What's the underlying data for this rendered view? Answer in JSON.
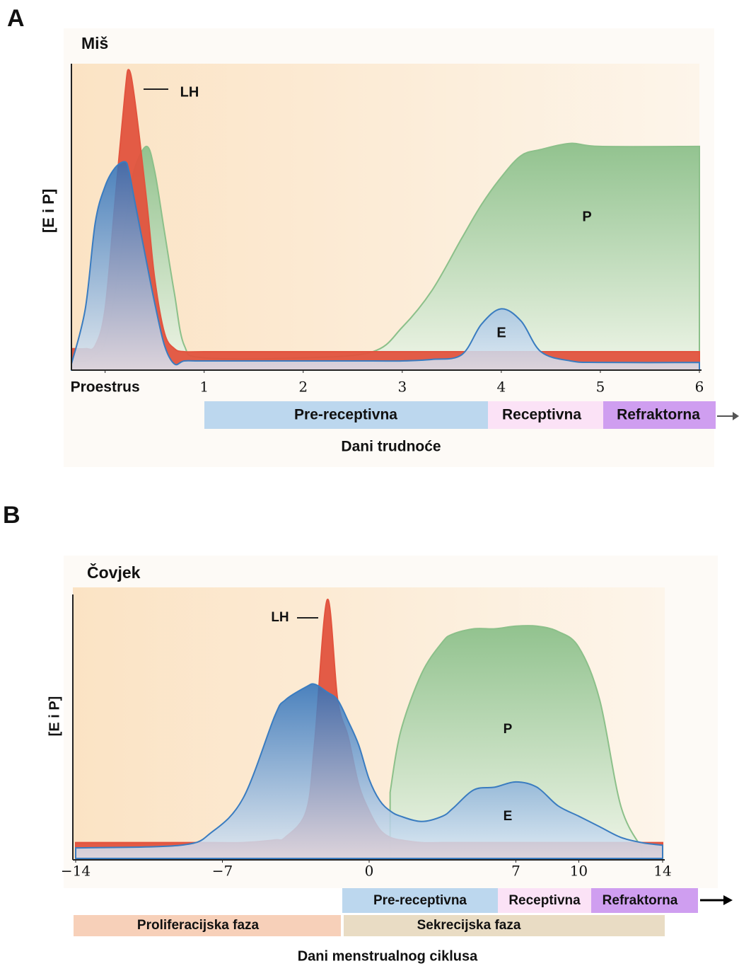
{
  "chart_data": [
    {
      "type": "area",
      "panel": "A",
      "title": "Miš",
      "ylabel": "[E i P]",
      "xlabel": "Dani trudnoće",
      "x": [
        -0.34,
        -0.2,
        -0.1,
        0,
        0.1,
        0.2,
        0.24,
        0.3,
        0.42,
        0.5,
        0.6,
        0.7,
        0.8,
        1,
        2,
        2.7,
        3,
        3.3,
        3.6,
        3.8,
        4,
        4.2,
        4.4,
        4.7,
        5,
        6
      ],
      "xlim": [
        -0.34,
        6
      ],
      "ylim": [
        0,
        100
      ],
      "xticks": [
        {
          "value": 0,
          "label": "Proestrus"
        },
        1,
        2,
        3,
        4,
        5,
        6
      ],
      "series": [
        {
          "name": "P",
          "color": "#8cc08a",
          "values": [
            3,
            3,
            5,
            9,
            25,
            47,
            55,
            66,
            73,
            65,
            45,
            25,
            8,
            4,
            4,
            6,
            14,
            26,
            43,
            54,
            63,
            70,
            72,
            74,
            73,
            73
          ]
        },
        {
          "name": "LH",
          "color": "#e2533e",
          "values": [
            7,
            7,
            8,
            20,
            55,
            90,
            98,
            88,
            55,
            30,
            12,
            7,
            6,
            6,
            6,
            6,
            6,
            6,
            6,
            6,
            6,
            6,
            6,
            6,
            6,
            6
          ]
        },
        {
          "name": "E",
          "color": "#3a7cc0",
          "values": [
            2,
            20,
            48,
            60,
            66,
            68,
            65,
            55,
            35,
            22,
            8,
            2,
            3,
            3,
            3,
            3,
            3,
            3.5,
            5,
            15,
            20,
            16,
            6,
            3,
            2.5,
            2.5
          ]
        }
      ],
      "phases": [
        "Pre-receptivna",
        "Receptivna",
        "Refraktorna"
      ]
    },
    {
      "type": "area",
      "panel": "B",
      "title": "Čovjek",
      "ylabel": "[E i P]",
      "xlabel": "Dani menstrualnog ciklusa",
      "x": [
        -14,
        -9,
        -7.5,
        -6,
        -4.5,
        -4,
        -3,
        -2.6,
        -2,
        -1.5,
        -1,
        -0.5,
        0,
        0.5,
        1,
        1.5,
        2.5,
        3.5,
        4,
        5,
        6,
        7,
        8,
        9,
        10,
        11,
        12,
        13,
        14
      ],
      "xlim": [
        -14,
        14
      ],
      "ylim": [
        0,
        100
      ],
      "xticks": [
        {
          "value": -14,
          "label": "−14"
        },
        {
          "value": -7,
          "label": "−7"
        },
        0,
        7,
        10,
        14
      ],
      "series": [
        {
          "name": "P",
          "color": "#8cc08a",
          "values": [
            null,
            null,
            null,
            null,
            null,
            null,
            null,
            null,
            null,
            null,
            null,
            null,
            null,
            null,
            25,
            48,
            70,
            82,
            85,
            87,
            87,
            88,
            88,
            86,
            80,
            60,
            20,
            4,
            null
          ]
        },
        {
          "name": "LH",
          "color": "#e2533e",
          "values": [
            6,
            6,
            6,
            6,
            7,
            8,
            18,
            44,
            98,
            60,
            46,
            28,
            18,
            11,
            8,
            7,
            6,
            6,
            6,
            6,
            6,
            6,
            6,
            6,
            6,
            6,
            6,
            6,
            6
          ]
        },
        {
          "name": "E",
          "color": "#3a7cc0",
          "values": [
            4,
            5,
            10,
            23,
            54,
            60,
            65,
            66,
            63,
            60,
            52,
            43,
            30,
            22,
            18,
            16,
            14,
            16,
            19,
            26,
            27,
            29,
            27,
            20,
            16,
            12,
            8,
            6,
            5
          ]
        }
      ],
      "phases": [
        "Pre-receptivna",
        "Receptivna",
        "Refraktorna"
      ],
      "cycle_phases": [
        "Proliferacijska faza",
        "Sekrecijska faza"
      ]
    }
  ]
}
